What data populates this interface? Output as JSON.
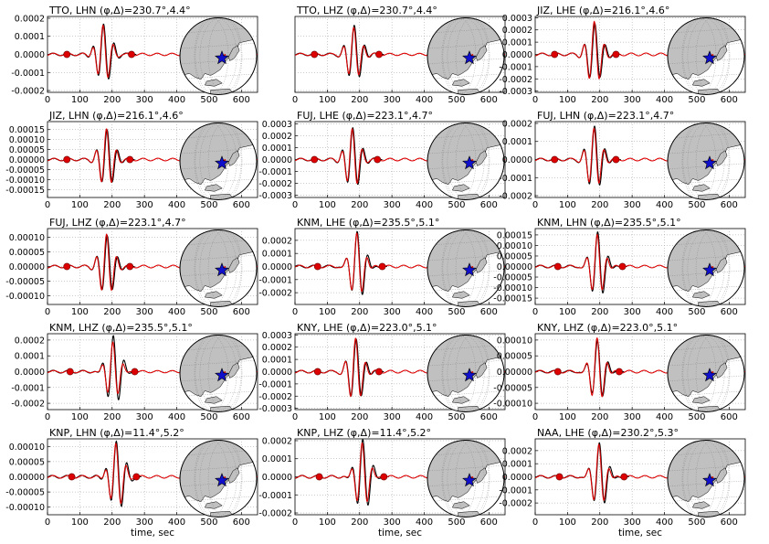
{
  "figure": {
    "xlabel": "time, sec",
    "colors": {
      "observed": "#000000",
      "synthetic": "#dd0000",
      "marker": "#dd0000",
      "star": "#1010cc",
      "land": "#c0c0c0",
      "grid": "#999999"
    }
  },
  "chart_data": [
    {
      "type": "line",
      "title": "TTO, LHN (φ,Δ)=230.7°,4.4°",
      "xlim": [
        0,
        650
      ],
      "ylim": [
        -0.00021,
        0.00021
      ],
      "yticks": [
        "0.0002",
        "0.0001",
        "0.0000",
        "-0.0001",
        "-0.0002"
      ],
      "xticks": [
        "0",
        "100",
        "200",
        "300",
        "400",
        "500",
        "600"
      ],
      "xlabel": "",
      "peak_t": 175,
      "amp_obs": 0.000175,
      "amp_syn": 0.000165,
      "markers": [
        60,
        260
      ]
    },
    {
      "type": "line",
      "title": "TTO, LHZ (φ,Δ)=230.7°,4.4°",
      "xlim": [
        0,
        650
      ],
      "ylim": [
        -0.00021,
        0.00021
      ],
      "yticks": [],
      "xticks": [
        "0",
        "100",
        "200",
        "300",
        "400",
        "500",
        "600"
      ],
      "xlabel": "",
      "peak_t": 185,
      "amp_obs": 0.000165,
      "amp_syn": 0.000155,
      "markers": [
        60,
        260
      ]
    },
    {
      "type": "line",
      "title": "JIZ, LHE (φ,Δ)=216.1°,4.6°",
      "xlim": [
        0,
        650
      ],
      "ylim": [
        -0.00031,
        0.00031
      ],
      "yticks": [
        "0.0003",
        "0.0002",
        "0.0001",
        "0.0000",
        "-0.0001",
        "-0.0002",
        "-0.0003"
      ],
      "xticks": [
        "0",
        "100",
        "200",
        "300",
        "400",
        "500",
        "600"
      ],
      "xlabel": "",
      "peak_t": 185,
      "amp_obs": 0.00026,
      "amp_syn": 0.00028,
      "markers": [
        60,
        250
      ]
    },
    {
      "type": "line",
      "title": "JIZ, LHN (φ,Δ)=216.1°,4.6°",
      "xlim": [
        0,
        650
      ],
      "ylim": [
        -0.00019,
        0.00019
      ],
      "yticks": [
        "0.00015",
        "0.00010",
        "0.00005",
        "0.00000",
        "-0.00005",
        "-0.00010",
        "-0.00015"
      ],
      "xticks": [
        "0",
        "100",
        "200",
        "300",
        "400",
        "500",
        "600"
      ],
      "xlabel": "",
      "peak_t": 185,
      "amp_obs": 0.000155,
      "amp_syn": 0.00016,
      "markers": [
        60,
        255
      ]
    },
    {
      "type": "line",
      "title": "FUJ, LHE (φ,Δ)=223.1°,4.7°",
      "xlim": [
        0,
        650
      ],
      "ylim": [
        -0.00032,
        0.00032
      ],
      "yticks": [
        "0.0003",
        "0.0002",
        "0.0001",
        "0.0000",
        "-0.0001",
        "-0.0002",
        "-0.0003"
      ],
      "xticks": [
        "0",
        "100",
        "200",
        "300",
        "400",
        "500",
        "600"
      ],
      "xlabel": "",
      "peak_t": 180,
      "amp_obs": 0.00028,
      "amp_syn": 0.00027,
      "markers": [
        60,
        255
      ]
    },
    {
      "type": "line",
      "title": "FUJ, LHN (φ,Δ)=223.1°,4.7°",
      "xlim": [
        0,
        650
      ],
      "ylim": [
        -0.00021,
        0.00021
      ],
      "yticks": [
        "0.0002",
        "0.0001",
        "0.0000",
        "-0.0001",
        "-0.0002"
      ],
      "xticks": [
        "0",
        "100",
        "200",
        "300",
        "400",
        "500",
        "600"
      ],
      "xlabel": "",
      "peak_t": 185,
      "amp_obs": 0.00019,
      "amp_syn": 0.00018,
      "markers": [
        60,
        250
      ]
    },
    {
      "type": "line",
      "title": "FUJ, LHZ (φ,Δ)=223.1°,4.7°",
      "xlim": [
        0,
        650
      ],
      "ylim": [
        -0.00013,
        0.00013
      ],
      "yticks": [
        "0.00010",
        "0.00005",
        "0.00000",
        "-0.00005",
        "-0.00010"
      ],
      "xticks": [
        "0",
        "100",
        "200",
        "300",
        "400",
        "500",
        "600"
      ],
      "xlabel": "",
      "peak_t": 185,
      "amp_obs": 0.00011,
      "amp_syn": 0.000115,
      "markers": [
        60,
        255
      ]
    },
    {
      "type": "line",
      "title": "KNM, LHE (φ,Δ)=235.5°,5.1°",
      "xlim": [
        0,
        650
      ],
      "ylim": [
        -0.00029,
        0.00029
      ],
      "yticks": [
        "0.0002",
        "0.0001",
        "0.0000",
        "-0.0001",
        "-0.0002"
      ],
      "xticks": [
        "0",
        "100",
        "200",
        "300",
        "400",
        "500",
        "600"
      ],
      "xlabel": "",
      "peak_t": 195,
      "amp_obs": 0.00026,
      "amp_syn": 0.00025,
      "markers": [
        70,
        270
      ]
    },
    {
      "type": "line",
      "title": "KNM, LHN (φ,Δ)=235.5°,5.1°",
      "xlim": [
        0,
        650
      ],
      "ylim": [
        -0.00018,
        0.00018
      ],
      "yticks": [
        "0.00015",
        "0.00010",
        "0.00005",
        "0.00000",
        "-0.00005",
        "-0.00010",
        "-0.00015"
      ],
      "xticks": [
        "0",
        "100",
        "200",
        "300",
        "400",
        "500",
        "600"
      ],
      "xlabel": "",
      "peak_t": 195,
      "amp_obs": 0.00016,
      "amp_syn": 0.00015,
      "markers": [
        70,
        270
      ]
    },
    {
      "type": "line",
      "title": "KNM, LHZ (φ,Δ)=235.5°,5.1°",
      "xlim": [
        0,
        650
      ],
      "ylim": [
        -0.00024,
        0.00024
      ],
      "yticks": [
        "0.0002",
        "0.0001",
        "0.0000",
        "-0.0001",
        "-0.0002"
      ],
      "xticks": [
        "0",
        "100",
        "200",
        "300",
        "400",
        "500",
        "600"
      ],
      "xlabel": "",
      "peak_t": 205,
      "amp_obs": 0.00022,
      "amp_syn": 0.00018,
      "markers": [
        70,
        270
      ]
    },
    {
      "type": "line",
      "title": "KNY, LHE (φ,Δ)=223.0°,5.1°",
      "xlim": [
        0,
        650
      ],
      "ylim": [
        -0.00031,
        0.00031
      ],
      "yticks": [
        "0.0003",
        "0.0002",
        "0.0001",
        "0.0000",
        "-0.0001",
        "-0.0002",
        "-0.0003"
      ],
      "xticks": [
        "0",
        "100",
        "200",
        "300",
        "400",
        "500",
        "600"
      ],
      "xlabel": "",
      "peak_t": 190,
      "amp_obs": 0.00027,
      "amp_syn": 0.00028,
      "markers": [
        70,
        260
      ]
    },
    {
      "type": "line",
      "title": "KNY, LHZ (φ,Δ)=223.0°,5.1°",
      "xlim": [
        0,
        650
      ],
      "ylim": [
        -0.00012,
        0.00012
      ],
      "yticks": [
        "0.00010",
        "0.00005",
        "0.00000",
        "-0.00005",
        "-0.00010"
      ],
      "xticks": [
        "0",
        "100",
        "200",
        "300",
        "400",
        "500",
        "600"
      ],
      "xlabel": "",
      "peak_t": 195,
      "amp_obs": 9.5e-05,
      "amp_syn": 0.000105,
      "markers": [
        70,
        260
      ]
    },
    {
      "type": "line",
      "title": "KNP, LHN (φ,Δ)=11.4°,5.2°",
      "xlim": [
        0,
        650
      ],
      "ylim": [
        -0.000125,
        0.000125
      ],
      "yticks": [
        "0.00010",
        "0.00005",
        "0.00000",
        "-0.00005",
        "-0.00010"
      ],
      "xticks": [
        "0",
        "100",
        "200",
        "300",
        "400",
        "500",
        "600"
      ],
      "xlabel": "time, sec",
      "peak_t": 215,
      "amp_obs": 0.00012,
      "amp_syn": 0.00011,
      "markers": [
        75,
        275
      ]
    },
    {
      "type": "line",
      "title": "KNP, LHZ (φ,Δ)=11.4°,5.2°",
      "xlim": [
        0,
        650
      ],
      "ylim": [
        -0.00021,
        0.00021
      ],
      "yticks": [
        "0.0002",
        "0.0001",
        "0.0000",
        "-0.0001",
        "-0.0002"
      ],
      "xticks": [
        "0",
        "100",
        "200",
        "300",
        "400",
        "500",
        "600"
      ],
      "xlabel": "time, sec",
      "peak_t": 210,
      "amp_obs": 0.0002,
      "amp_syn": 0.00018,
      "markers": [
        75,
        275
      ]
    },
    {
      "type": "line",
      "title": "NAA, LHE (φ,Δ)=230.2°,5.3°",
      "xlim": [
        0,
        650
      ],
      "ylim": [
        -0.00029,
        0.00029
      ],
      "yticks": [
        "0.0002",
        "0.0001",
        "0.0000",
        "-0.0001",
        "-0.0002"
      ],
      "xticks": [
        "0",
        "100",
        "200",
        "300",
        "400",
        "500",
        "600"
      ],
      "xlabel": "time, sec",
      "peak_t": 200,
      "amp_obs": 0.00025,
      "amp_syn": 0.00024,
      "markers": [
        75,
        275
      ]
    }
  ]
}
